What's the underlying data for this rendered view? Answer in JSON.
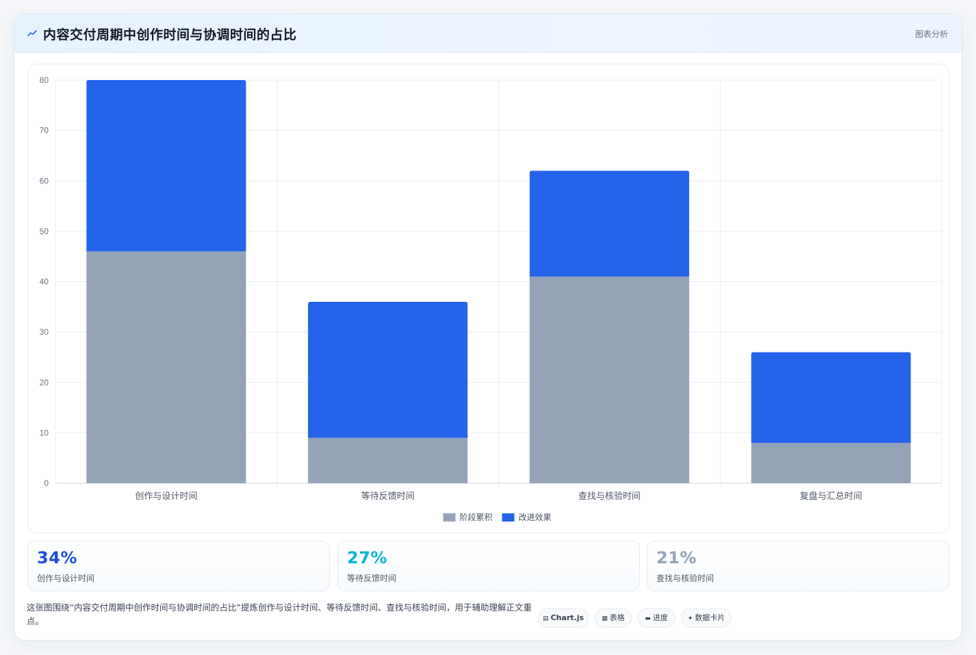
{
  "header": {
    "icon": "chart-line-icon",
    "title": "内容交付周期中创作时间与协调时间的占比",
    "tag": "图表分析"
  },
  "chart_data": {
    "type": "bar",
    "stacked": true,
    "categories": [
      "创作与设计时间",
      "等待反馈时间",
      "查找与核验时间",
      "复盘与汇总时间"
    ],
    "series": [
      {
        "name": "阶段累积",
        "values": [
          46,
          9,
          41,
          8
        ],
        "color": "#94a3b8"
      },
      {
        "name": "改进效果",
        "values": [
          34,
          27,
          21,
          18
        ],
        "color": "#2563eb"
      }
    ],
    "ylim": [
      0,
      80
    ],
    "yticks": [
      0,
      10,
      20,
      30,
      40,
      50,
      60,
      70,
      80
    ],
    "grid": true,
    "legend": "bottom"
  },
  "stats": [
    {
      "value": "34%",
      "label": "创作与设计时间",
      "color": "#1d4ed8"
    },
    {
      "value": "27%",
      "label": "等待反馈时间",
      "color": "#06b6d4"
    },
    {
      "value": "21%",
      "label": "查找与核验时间",
      "color": "#94a3b8"
    }
  ],
  "footer": {
    "note": "这张图围绕“内容交付周期中创作时间与协调时间的占比”提炼创作与设计时间、等待反馈时间、查找与核验时间，用于辅助理解正文重点。"
  },
  "chips": [
    {
      "label": "Chart.js",
      "icon": "chart-icon"
    },
    {
      "label": "表格",
      "icon": "table-icon"
    },
    {
      "label": "进度",
      "icon": "progress-icon"
    },
    {
      "label": "数据卡片",
      "icon": "sparkle-icon"
    }
  ]
}
